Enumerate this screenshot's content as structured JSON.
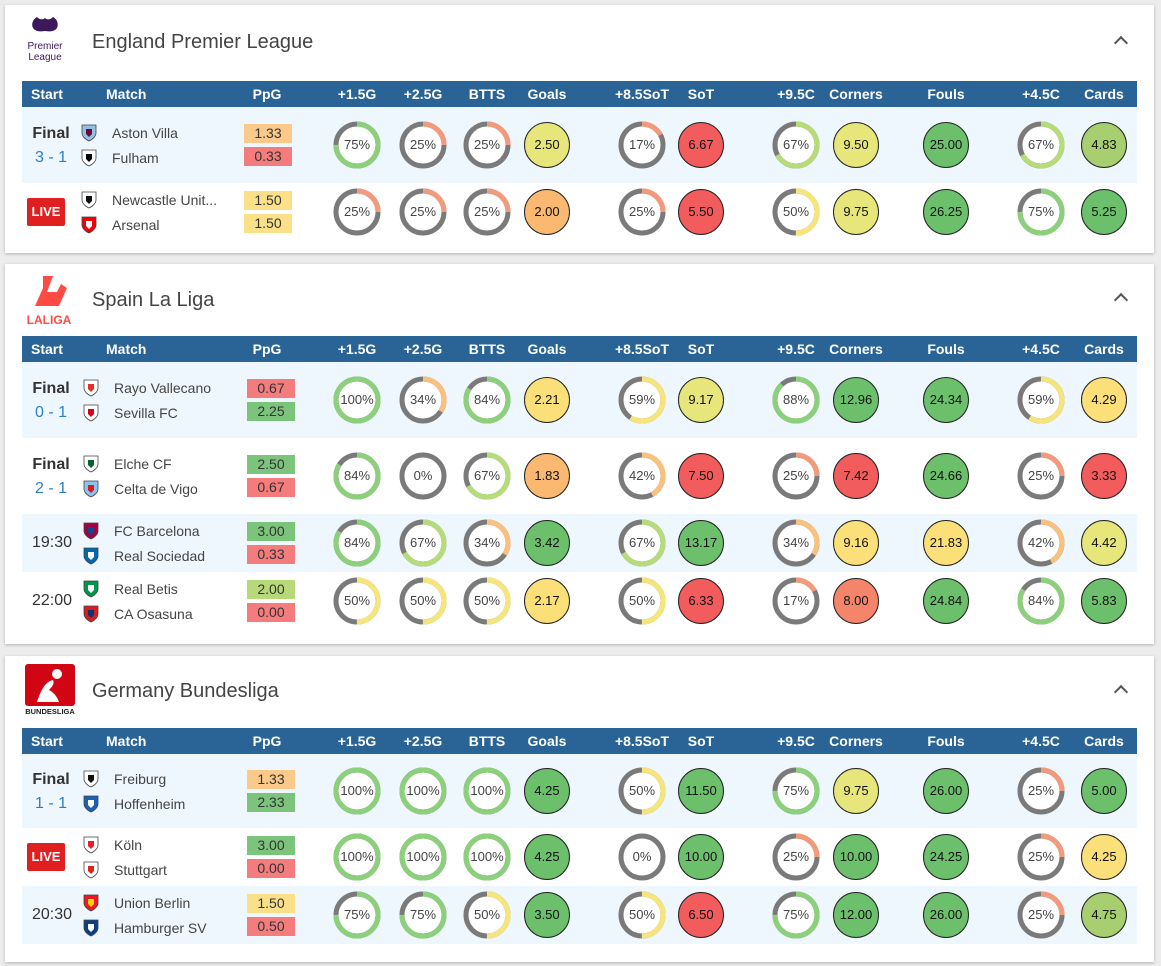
{
  "columns": [
    {
      "key": "start",
      "label": "Start"
    },
    {
      "key": "match",
      "label": "Match"
    },
    {
      "key": "ppg",
      "label": "PpG"
    },
    {
      "key": "o15",
      "label": "+1.5G"
    },
    {
      "key": "o25",
      "label": "+2.5G"
    },
    {
      "key": "btts",
      "label": "BTTS"
    },
    {
      "key": "goals",
      "label": "Goals"
    },
    {
      "key": "sot85",
      "label": "+8.5SoT"
    },
    {
      "key": "sot",
      "label": "SoT"
    },
    {
      "key": "c95",
      "label": "+9.5C"
    },
    {
      "key": "corners",
      "label": "Corners"
    },
    {
      "key": "fouls",
      "label": "Fouls"
    },
    {
      "key": "c45",
      "label": "+4.5C"
    },
    {
      "key": "cards",
      "label": "Cards"
    }
  ],
  "leagues": [
    {
      "name": "England Premier League",
      "logo_text": [
        "Premier",
        "League"
      ],
      "matches": [
        {
          "status": "final",
          "status_label": "Final",
          "score": "3 - 1",
          "home": "Aston Villa",
          "away": "Fulham",
          "home_crest": "aston-villa-crest",
          "away_crest": "fulham-crest",
          "ppg_home": "1.33",
          "ppg_away": "0.33",
          "ppg_home_color": "#fbc98a",
          "ppg_away_color": "#f47c7c",
          "o15": 75,
          "o25": 25,
          "btts": 25,
          "goals": "2.50",
          "goals_color": "#e6e67a",
          "sot85": 17,
          "sot": "6.67",
          "sot_color": "#f25c5c",
          "c95": 67,
          "corners": "9.50",
          "corners_color": "#e6e67a",
          "fouls": "25.00",
          "fouls_color": "#6cc06c",
          "c45": 67,
          "cards": "4.83",
          "cards_color": "#a7cf6f"
        },
        {
          "status": "live",
          "status_label": "LIVE",
          "score": "",
          "home": "Newcastle Unit...",
          "away": "Arsenal",
          "home_crest": "newcastle-crest",
          "away_crest": "arsenal-crest",
          "ppg_home": "1.50",
          "ppg_away": "1.50",
          "ppg_home_color": "#fbe08a",
          "ppg_away_color": "#fbe08a",
          "o15": 25,
          "o25": 25,
          "btts": 25,
          "goals": "2.00",
          "goals_color": "#fbb870",
          "sot85": 25,
          "sot": "5.50",
          "sot_color": "#f25c5c",
          "c95": 50,
          "corners": "9.75",
          "corners_color": "#e6e67a",
          "fouls": "26.25",
          "fouls_color": "#6cc06c",
          "c45": 75,
          "cards": "5.25",
          "cards_color": "#6cc06c"
        }
      ]
    },
    {
      "name": "Spain La Liga",
      "logo_text": [
        "LALIGA"
      ],
      "matches": [
        {
          "status": "final",
          "status_label": "Final",
          "score": "0 - 1",
          "home": "Rayo Vallecano",
          "away": "Sevilla FC",
          "home_crest": "rayo-crest",
          "away_crest": "sevilla-crest",
          "ppg_home": "0.67",
          "ppg_away": "2.25",
          "ppg_home_color": "#f47c7c",
          "ppg_away_color": "#7cc47c",
          "o15": 100,
          "o25": 34,
          "btts": 84,
          "goals": "2.21",
          "goals_color": "#fbe07a",
          "sot85": 59,
          "sot": "9.17",
          "sot_color": "#e6e67a",
          "c95": 88,
          "corners": "12.96",
          "corners_color": "#6cc06c",
          "fouls": "24.34",
          "fouls_color": "#6cc06c",
          "c45": 59,
          "cards": "4.29",
          "cards_color": "#fbe07a"
        },
        {
          "status": "final",
          "status_label": "Final",
          "score": "2 - 1",
          "home": "Elche CF",
          "away": "Celta de Vigo",
          "home_crest": "elche-crest",
          "away_crest": "celta-crest",
          "ppg_home": "2.50",
          "ppg_away": "0.67",
          "ppg_home_color": "#7cc47c",
          "ppg_away_color": "#f47c7c",
          "o15": 84,
          "o25": 0,
          "btts": 67,
          "goals": "1.83",
          "goals_color": "#fbb870",
          "sot85": 42,
          "sot": "7.50",
          "sot_color": "#f25c5c",
          "c95": 25,
          "corners": "7.42",
          "corners_color": "#f25c5c",
          "fouls": "24.66",
          "fouls_color": "#6cc06c",
          "c45": 25,
          "cards": "3.33",
          "cards_color": "#f25c5c"
        },
        {
          "status": "scheduled",
          "status_label": "19:30",
          "score": "",
          "home": "FC Barcelona",
          "away": "Real Sociedad",
          "home_crest": "barcelona-crest",
          "away_crest": "sociedad-crest",
          "ppg_home": "3.00",
          "ppg_away": "0.33",
          "ppg_home_color": "#7cc47c",
          "ppg_away_color": "#f47c7c",
          "o15": 84,
          "o25": 67,
          "btts": 34,
          "goals": "3.42",
          "goals_color": "#6cc06c",
          "sot85": 67,
          "sot": "13.17",
          "sot_color": "#6cc06c",
          "c95": 34,
          "corners": "9.16",
          "corners_color": "#fbe07a",
          "fouls": "21.83",
          "fouls_color": "#fbe07a",
          "c45": 42,
          "cards": "4.42",
          "cards_color": "#e6e67a"
        },
        {
          "status": "scheduled",
          "status_label": "22:00",
          "score": "",
          "home": "Real Betis",
          "away": "CA Osasuna",
          "home_crest": "betis-crest",
          "away_crest": "osasuna-crest",
          "ppg_home": "2.00",
          "ppg_away": "0.00",
          "ppg_home_color": "#b7d97a",
          "ppg_away_color": "#f47c7c",
          "o15": 50,
          "o25": 50,
          "btts": 50,
          "goals": "2.17",
          "goals_color": "#fbe07a",
          "sot85": 50,
          "sot": "6.33",
          "sot_color": "#f25c5c",
          "c95": 17,
          "corners": "8.00",
          "corners_color": "#f5856a",
          "fouls": "24.84",
          "fouls_color": "#6cc06c",
          "c45": 84,
          "cards": "5.83",
          "cards_color": "#6cc06c"
        }
      ]
    },
    {
      "name": "Germany Bundesliga",
      "logo_text": [
        "BUNDESLIGA"
      ],
      "matches": [
        {
          "status": "final",
          "status_label": "Final",
          "score": "1 - 1",
          "home": "Freiburg",
          "away": "Hoffenheim",
          "home_crest": "freiburg-crest",
          "away_crest": "hoffenheim-crest",
          "ppg_home": "1.33",
          "ppg_away": "2.33",
          "ppg_home_color": "#fbc98a",
          "ppg_away_color": "#7cc47c",
          "o15": 100,
          "o25": 100,
          "btts": 100,
          "goals": "4.25",
          "goals_color": "#6cc06c",
          "sot85": 50,
          "sot": "11.50",
          "sot_color": "#6cc06c",
          "c95": 75,
          "corners": "9.75",
          "corners_color": "#e6e67a",
          "fouls": "26.00",
          "fouls_color": "#6cc06c",
          "c45": 25,
          "cards": "5.00",
          "cards_color": "#6cc06c"
        },
        {
          "status": "live",
          "status_label": "LIVE",
          "score": "",
          "home": "Köln",
          "away": "Stuttgart",
          "home_crest": "koln-crest",
          "away_crest": "stuttgart-crest",
          "ppg_home": "3.00",
          "ppg_away": "0.00",
          "ppg_home_color": "#7cc47c",
          "ppg_away_color": "#f47c7c",
          "o15": 100,
          "o25": 100,
          "btts": 100,
          "goals": "4.25",
          "goals_color": "#6cc06c",
          "sot85": 0,
          "sot": "10.00",
          "sot_color": "#6cc06c",
          "c95": 25,
          "corners": "10.00",
          "corners_color": "#6cc06c",
          "fouls": "24.25",
          "fouls_color": "#6cc06c",
          "c45": 25,
          "cards": "4.25",
          "cards_color": "#fbe07a"
        },
        {
          "status": "scheduled",
          "status_label": "20:30",
          "score": "",
          "home": "Union Berlin",
          "away": "Hamburger SV",
          "home_crest": "union-berlin-crest",
          "away_crest": "hamburg-crest",
          "ppg_home": "1.50",
          "ppg_away": "0.50",
          "ppg_home_color": "#fbe08a",
          "ppg_away_color": "#f47c7c",
          "o15": 75,
          "o25": 75,
          "btts": 50,
          "goals": "3.50",
          "goals_color": "#6cc06c",
          "sot85": 50,
          "sot": "6.50",
          "sot_color": "#f25c5c",
          "c95": 75,
          "corners": "12.00",
          "corners_color": "#6cc06c",
          "fouls": "26.00",
          "fouls_color": "#6cc06c",
          "c45": 25,
          "cards": "4.75",
          "cards_color": "#a7cf6f"
        }
      ]
    }
  ]
}
